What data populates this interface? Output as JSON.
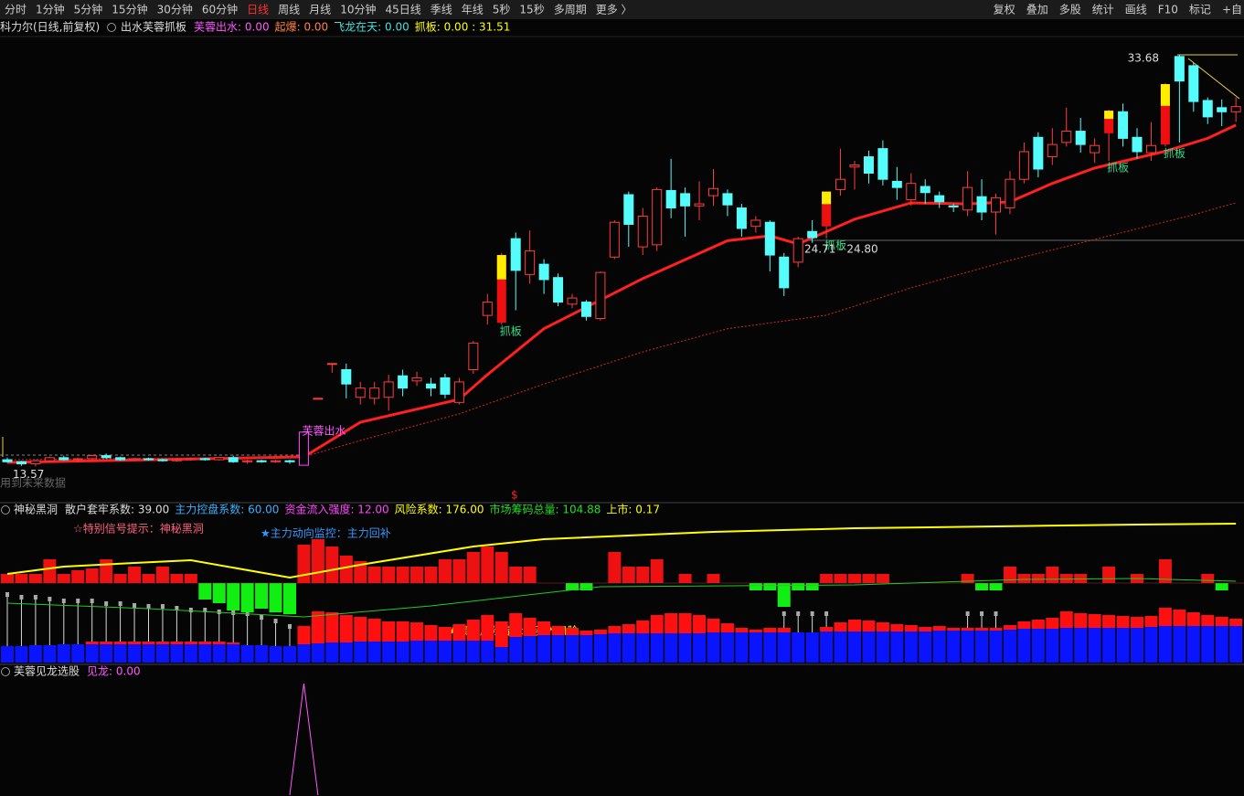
{
  "toolbar": {
    "left": [
      "分时",
      "1分钟",
      "5分钟",
      "15分钟",
      "30分钟",
      "60分钟",
      "日线",
      "周线",
      "月线",
      "10分钟",
      "45日线",
      "季线",
      "年线",
      "5秒",
      "15秒",
      "多周期",
      "更多 〉"
    ],
    "active": 6,
    "right": [
      "复权",
      "叠加",
      "多股",
      "统计",
      "画线",
      "F10",
      "标记",
      "+自"
    ]
  },
  "chart_data": [
    {
      "type": "candlestick",
      "title": "科力尔(日线,前复权)",
      "indicator": "出水芙蓉抓板",
      "legend": [
        {
          "text": "芙蓉出水: 0.00",
          "color": "#ff55ff"
        },
        {
          "text": "起爆: 0.00",
          "color": "#ff8040"
        },
        {
          "text": "飞龙在天: 0.00",
          "color": "#40e0e0"
        },
        {
          "text": "抓板: 0.00 : 31.51",
          "color": "#ffff00"
        }
      ],
      "ohlc": [
        [
          13.9,
          14.0,
          13.75,
          13.8
        ],
        [
          13.8,
          13.85,
          13.6,
          13.7
        ],
        [
          13.7,
          13.9,
          13.57,
          13.85
        ],
        [
          13.85,
          14.05,
          13.8,
          14.0
        ],
        [
          14.0,
          14.1,
          13.85,
          13.9
        ],
        [
          13.9,
          14.0,
          13.8,
          13.95
        ],
        [
          13.95,
          14.15,
          13.9,
          14.1
        ],
        [
          14.1,
          14.2,
          13.95,
          14.0
        ],
        [
          14.0,
          14.05,
          13.85,
          13.9
        ],
        [
          13.9,
          14.0,
          13.85,
          13.95
        ],
        [
          13.95,
          14.0,
          13.85,
          13.9
        ],
        [
          13.9,
          13.95,
          13.8,
          13.85
        ],
        [
          13.85,
          13.95,
          13.8,
          13.9
        ],
        [
          13.9,
          14.0,
          13.85,
          13.95
        ],
        [
          13.95,
          14.0,
          13.85,
          13.9
        ],
        [
          13.9,
          14.05,
          13.85,
          14.0
        ],
        [
          14.0,
          14.1,
          13.75,
          13.8
        ],
        [
          13.8,
          13.9,
          13.7,
          13.85
        ],
        [
          13.85,
          13.9,
          13.75,
          13.8
        ],
        [
          13.8,
          13.9,
          13.75,
          13.85
        ],
        [
          13.85,
          13.9,
          13.7,
          13.8
        ],
        [
          13.63,
          15.25,
          13.63,
          15.25
        ],
        [
          16.9,
          16.92,
          16.88,
          16.9
        ],
        [
          18.6,
          18.6,
          18.15,
          18.6
        ],
        [
          18.3,
          18.6,
          16.9,
          17.6
        ],
        [
          16.95,
          17.7,
          16.6,
          17.4
        ],
        [
          16.9,
          17.7,
          16.6,
          17.4
        ],
        [
          16.95,
          18.05,
          16.3,
          17.7
        ],
        [
          18.0,
          18.3,
          17.0,
          17.4
        ],
        [
          17.75,
          18.2,
          17.5,
          17.9
        ],
        [
          17.6,
          17.9,
          17.0,
          17.4
        ],
        [
          17.9,
          18.1,
          16.9,
          17.1
        ],
        [
          16.7,
          17.9,
          16.6,
          17.7
        ],
        [
          18.3,
          19.7,
          18.1,
          19.6
        ],
        [
          20.95,
          22.0,
          20.5,
          21.6
        ],
        [
          20.6,
          24.0,
          20.5,
          23.9
        ],
        [
          24.7,
          25.0,
          21.2,
          23.15
        ],
        [
          22.95,
          25.1,
          22.5,
          24.1
        ],
        [
          23.45,
          23.7,
          22.0,
          22.7
        ],
        [
          22.8,
          23.0,
          21.4,
          21.6
        ],
        [
          21.5,
          22.0,
          21.3,
          21.8
        ],
        [
          21.6,
          21.7,
          20.7,
          20.9
        ],
        [
          20.8,
          23.1,
          20.7,
          23.05
        ],
        [
          23.8,
          25.6,
          23.7,
          25.5
        ],
        [
          26.85,
          27.0,
          24.3,
          25.4
        ],
        [
          24.3,
          26.2,
          23.9,
          25.8
        ],
        [
          24.4,
          27.2,
          24.1,
          27.1
        ],
        [
          27.05,
          28.6,
          25.7,
          26.2
        ],
        [
          26.9,
          27.2,
          24.8,
          26.3
        ],
        [
          26.3,
          27.5,
          25.6,
          26.4
        ],
        [
          26.8,
          28.1,
          26.3,
          27.15
        ],
        [
          26.9,
          27.1,
          25.8,
          26.35
        ],
        [
          26.2,
          26.4,
          24.8,
          25.2
        ],
        [
          25.3,
          25.8,
          25.0,
          25.6
        ],
        [
          25.5,
          25.6,
          23.1,
          23.9
        ],
        [
          23.8,
          24.0,
          21.9,
          22.3
        ],
        [
          23.55,
          24.8,
          23.3,
          24.7
        ],
        [
          25.05,
          25.6,
          24.5,
          24.75
        ],
        [
          25.3,
          27.0,
          24.71,
          27.0
        ],
        [
          27.1,
          29.1,
          26.8,
          27.6
        ],
        [
          28.2,
          28.5,
          27.1,
          28.3
        ],
        [
          28.7,
          29.0,
          27.4,
          27.9
        ],
        [
          29.1,
          29.5,
          27.3,
          27.6
        ],
        [
          27.5,
          28.2,
          26.6,
          27.2
        ],
        [
          26.6,
          27.9,
          26.3,
          27.4
        ],
        [
          27.25,
          27.6,
          26.4,
          26.95
        ],
        [
          26.8,
          27.0,
          26.2,
          26.5
        ],
        [
          26.3,
          26.4,
          26.0,
          26.25
        ],
        [
          26.1,
          28.0,
          25.8,
          27.2
        ],
        [
          26.75,
          27.6,
          25.6,
          26.0
        ],
        [
          26.0,
          26.9,
          24.9,
          26.7
        ],
        [
          26.2,
          28.0,
          25.9,
          27.6
        ],
        [
          27.6,
          29.4,
          27.4,
          28.95
        ],
        [
          29.65,
          29.9,
          27.7,
          28.1
        ],
        [
          28.7,
          30.1,
          28.3,
          29.3
        ],
        [
          29.4,
          31.1,
          29.2,
          29.95
        ],
        [
          29.95,
          30.6,
          28.9,
          29.3
        ],
        [
          28.9,
          29.6,
          28.4,
          29.25
        ],
        [
          29.85,
          31.0,
          28.5,
          30.95
        ],
        [
          30.9,
          31.3,
          29.2,
          29.6
        ],
        [
          29.65,
          30.1,
          28.6,
          28.95
        ],
        [
          28.9,
          30.4,
          28.5,
          29.25
        ],
        [
          29.3,
          32.3,
          29.2,
          32.25
        ],
        [
          33.6,
          33.68,
          29.4,
          32.4
        ],
        [
          33.15,
          33.3,
          30.9,
          31.4
        ],
        [
          31.45,
          31.6,
          30.3,
          30.65
        ],
        [
          31.1,
          31.5,
          30.2,
          30.9
        ],
        [
          30.9,
          31.6,
          30.4,
          31.15
        ]
      ],
      "up_color": "#ff3c3c",
      "down_color": "#54fcfc",
      "signal_color": "#ffee00",
      "ylim": [
        12.25,
        35.02
      ],
      "lines": [
        {
          "x": [
            0,
            21,
            25,
            32,
            34,
            38,
            45,
            51,
            54,
            56,
            60,
            64,
            68,
            71,
            74,
            77,
            82,
            85,
            87
          ],
          "values": [
            13.77,
            14.04,
            15.73,
            16.85,
            18.06,
            20.3,
            22.75,
            24.6,
            24.84,
            24.44,
            25.65,
            26.45,
            26.4,
            26.5,
            27.4,
            28.15,
            28.97,
            29.6,
            30.25
          ],
          "color": "#ff2020",
          "style": "solid"
        },
        {
          "x": [
            0,
            21,
            25,
            32,
            38,
            45,
            51,
            58,
            64,
            71,
            77,
            84,
            87
          ],
          "values": [
            13.9,
            14.04,
            14.84,
            16.14,
            17.6,
            19.17,
            20.3,
            20.96,
            22.3,
            23.64,
            24.66,
            25.87,
            26.45
          ],
          "color": "#d02828",
          "style": "dotted"
        }
      ],
      "annotations": [
        "抓板",
        "抓板",
        "抓板",
        "抓板",
        "芙蓉出水"
      ],
      "high_label": 33.68,
      "low_label": 13.57,
      "range_label": "24.71 - 24.80",
      "note": "用到未来数据",
      "marker": "$"
    },
    {
      "type": "bar",
      "title": "神秘黑洞",
      "legend": [
        {
          "text": "散户套牢系数: 39.00",
          "color": "#dddddd"
        },
        {
          "text": "主力控盘系数: 60.00",
          "color": "#3ab0ff"
        },
        {
          "text": "资金流入强度: 12.00",
          "color": "#ff44ff"
        },
        {
          "text": "风险系数: 176.00",
          "color": "#ffff00"
        },
        {
          "text": "市场筹码总量: 104.88",
          "color": "#22dd22"
        },
        {
          "text": "上市: 0.17",
          "color": "#ffff00"
        }
      ],
      "notes": [
        {
          "text": "☆特别信号提示：神秘黑洞",
          "color": "#ff6080"
        },
        {
          "text": "★主力动向监控：主力回补",
          "color": "#3399ff"
        },
        {
          "text": "★操作风险提示：买入风险",
          "color": "#ffff00"
        }
      ],
      "values": [
        10,
        10,
        10,
        26,
        10,
        14,
        16,
        26,
        10,
        18,
        10,
        18,
        10,
        10,
        -18,
        -22,
        -30,
        -32,
        -28,
        -32,
        -34,
        42,
        48,
        40,
        30,
        24,
        18,
        18,
        18,
        18,
        18,
        26,
        26,
        34,
        40,
        34,
        18,
        18,
        0,
        0,
        -8,
        -8,
        0,
        34,
        18,
        18,
        26,
        0,
        10,
        0,
        10,
        0,
        0,
        -8,
        -8,
        -26,
        -8,
        -8,
        10,
        10,
        10,
        10,
        10,
        0,
        0,
        0,
        0,
        0,
        10,
        -8,
        -8,
        18,
        10,
        10,
        18,
        10,
        10,
        0,
        18,
        0,
        10,
        0,
        26,
        0,
        0,
        10,
        -8,
        0
      ],
      "pos_color": "#ee1111",
      "neg_color": "#11ee11",
      "ylim": [
        -50,
        70
      ],
      "lines": [
        {
          "x": [
            0,
            4,
            9,
            13,
            20,
            25,
            33,
            38,
            50,
            60,
            70,
            80,
            87
          ],
          "values": [
            10,
            18,
            22,
            25,
            6,
            20,
            40,
            48,
            56,
            60,
            62,
            64,
            65
          ],
          "color": "#ffff00"
        },
        {
          "x": [
            0,
            10,
            21,
            30,
            42,
            60,
            72,
            80,
            87
          ],
          "values": [
            -22,
            -28,
            -37,
            -25,
            -4,
            -2,
            4,
            5,
            2
          ],
          "color": "#22cc22"
        }
      ],
      "stack": {
        "ylim": [
          0,
          80
        ],
        "series": [
          {
            "color": "#0a14ff",
            "values": [
              18,
              18,
              19,
              19,
              20,
              20,
              20,
              20,
              20,
              20,
              20,
              20,
              20,
              20,
              20,
              20,
              20,
              19,
              19,
              18,
              18,
              20,
              21,
              22,
              22,
              23,
              23,
              23,
              23,
              24,
              24,
              24,
              24,
              24,
              24,
              17,
              28,
              29,
              30,
              30,
              30,
              30,
              31,
              32,
              32,
              32,
              32,
              32,
              32,
              32,
              33,
              33,
              33,
              33,
              33,
              33,
              33,
              33,
              34,
              34,
              34,
              34,
              34,
              34,
              34,
              34,
              35,
              35,
              35,
              35,
              35,
              36,
              37,
              37,
              37,
              38,
              38,
              38,
              38,
              38,
              38,
              39,
              40,
              40,
              40,
              40,
              40,
              40
            ]
          },
          {
            "color": "#ff1010",
            "values": [
              0,
              0,
              0,
              0,
              0,
              0,
              3,
              3,
              3,
              3,
              3,
              3,
              3,
              3,
              3,
              3,
              2,
              0,
              0,
              0,
              0,
              20,
              35,
              33,
              30,
              27,
              25,
              22,
              22,
              20,
              17,
              15,
              18,
              23,
              28,
              28,
              26,
              20,
              15,
              10,
              8,
              5,
              5,
              8,
              10,
              14,
              20,
              22,
              22,
              20,
              15,
              10,
              5,
              3,
              5,
              5,
              0,
              0,
              5,
              10,
              13,
              12,
              10,
              8,
              7,
              5,
              5,
              3,
              3,
              3,
              3,
              5,
              8,
              10,
              12,
              18,
              16,
              15,
              14,
              13,
              12,
              12,
              20,
              18,
              15,
              12,
              10,
              8
            ]
          }
        ],
        "sticks": {
          "color": "#d8d8d8",
          "values": [
            75,
            72,
            72,
            70,
            68,
            68,
            68,
            65,
            65,
            63,
            62,
            62,
            60,
            58,
            58,
            56,
            55,
            54,
            50,
            46,
            40,
            null,
            null,
            null,
            null,
            null,
            null,
            null,
            null,
            null,
            null,
            null,
            null,
            null,
            null,
            null,
            null,
            null,
            null,
            null,
            null,
            null,
            null,
            null,
            null,
            null,
            null,
            null,
            null,
            null,
            null,
            null,
            null,
            null,
            null,
            54,
            54,
            54,
            54,
            null,
            null,
            null,
            null,
            null,
            null,
            null,
            null,
            null,
            54,
            54,
            54,
            null,
            null,
            null,
            null,
            null,
            null,
            null,
            null,
            null,
            null,
            null,
            null,
            null,
            null,
            null,
            null,
            null
          ]
        }
      }
    },
    {
      "type": "line",
      "title": "芙蓉见龙选股",
      "legend": [
        {
          "text": "见龙: 0.00",
          "color": "#ff55ff"
        }
      ],
      "x": [
        20,
        21,
        22
      ],
      "values": [
        0,
        1,
        0
      ],
      "ylim": [
        0,
        1
      ],
      "color": "#ff55ff"
    }
  ]
}
